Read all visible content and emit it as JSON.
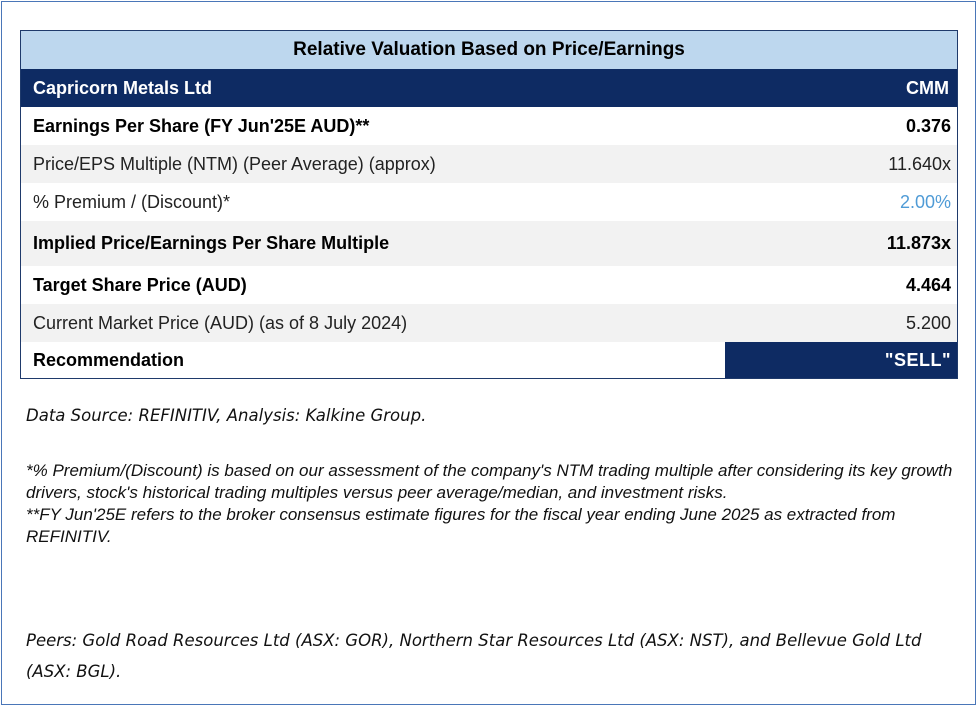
{
  "table": {
    "title": "Relative Valuation Based on Price/Earnings",
    "company": {
      "name": "Capricorn Metals Ltd",
      "ticker": "CMM"
    },
    "rows": [
      {
        "label": "Earnings Per Share (FY Jun'25E AUD)**",
        "value": "0.376"
      },
      {
        "label": "Price/EPS Multiple (NTM) (Peer Average) (approx)",
        "value": "11.640x"
      },
      {
        "label": "% Premium / (Discount)*",
        "value": "2.00%"
      },
      {
        "label": "Implied Price/Earnings Per Share Multiple",
        "value": "11.873x"
      },
      {
        "label": "Target Share Price (AUD)",
        "value": "4.464"
      },
      {
        "label": "Current Market Price (AUD) (as of 8 July 2024)",
        "value": "5.200"
      }
    ],
    "recommendation": {
      "label": "Recommendation",
      "value": "\"SELL\""
    }
  },
  "notes": {
    "source": "Data Source: REFINITIV, Analysis: Kalkine Group.",
    "premium_note": "*% Premium/(Discount) is based on our assessment of the company's NTM trading multiple after considering its key growth drivers, stock's historical trading multiples versus peer average/median, and investment risks.",
    "fy_note": "**FY Jun'25E refers to the broker consensus estimate figures for the fiscal year ending June 2025 as extracted from REFINITIV.",
    "peers": "Peers: Gold Road Resources Ltd (ASX: GOR), Northern Star Resources Ltd (ASX: NST), and Bellevue Gold Ltd (ASX: BGL)."
  },
  "colors": {
    "header_navy": "#0e2b63",
    "title_band": "#bdd7ee",
    "premium_value_blue": "#4f9bd6"
  }
}
